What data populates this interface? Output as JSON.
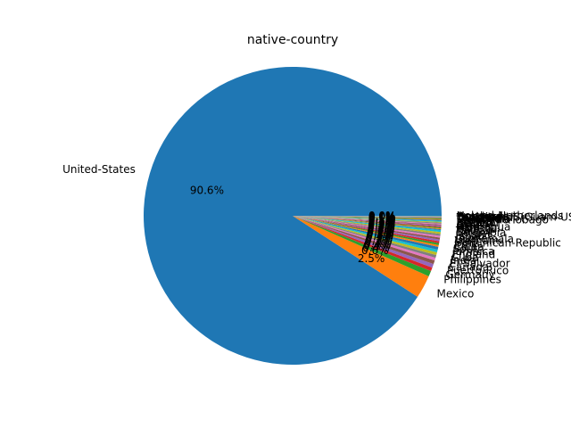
{
  "chart_data": {
    "type": "pie",
    "title": "native-country",
    "start_angle_deg": 0,
    "direction": "counterclockwise",
    "label_format": "percent-1-decimal",
    "palette": [
      "#1f77b4",
      "#ff7f0e",
      "#2ca02c",
      "#d62728",
      "#9467bd",
      "#8c564b",
      "#e377c2",
      "#7f7f7f",
      "#bcbd22",
      "#17becf"
    ],
    "slices": [
      {
        "label": "United-States",
        "value": 90.6
      },
      {
        "label": "Mexico",
        "value": 2.5
      },
      {
        "label": "Philippines",
        "value": 0.6
      },
      {
        "label": "Germany",
        "value": 0.4
      },
      {
        "label": "Puerto-Rico",
        "value": 0.4
      },
      {
        "label": "Canada",
        "value": 0.4
      },
      {
        "label": "El-Salvador",
        "value": 0.3
      },
      {
        "label": "India",
        "value": 0.3
      },
      {
        "label": "Cuba",
        "value": 0.3
      },
      {
        "label": "England",
        "value": 0.3
      },
      {
        "label": "Jamaica",
        "value": 0.3
      },
      {
        "label": "South",
        "value": 0.2
      },
      {
        "label": "China",
        "value": 0.2
      },
      {
        "label": "Italy",
        "value": 0.2
      },
      {
        "label": "Dominican-Republic",
        "value": 0.2
      },
      {
        "label": "Vietnam",
        "value": 0.2
      },
      {
        "label": "Guatemala",
        "value": 0.2
      },
      {
        "label": "Japan",
        "value": 0.2
      },
      {
        "label": "Poland",
        "value": 0.2
      },
      {
        "label": "Columbia",
        "value": 0.2
      },
      {
        "label": "Taiwan",
        "value": 0.1
      },
      {
        "label": "Haiti",
        "value": 0.1
      },
      {
        "label": "Iran",
        "value": 0.1
      },
      {
        "label": "Portugal",
        "value": 0.1
      },
      {
        "label": "Nicaragua",
        "value": 0.1
      },
      {
        "label": "Peru",
        "value": 0.1
      },
      {
        "label": "Greece",
        "value": 0.1
      },
      {
        "label": "France",
        "value": 0.1
      },
      {
        "label": "Ecuador",
        "value": 0.1
      },
      {
        "label": "Ireland",
        "value": 0.1
      },
      {
        "label": "Hong",
        "value": 0.1
      },
      {
        "label": "Trinadad&Tobago",
        "value": 0.1
      },
      {
        "label": "Cambodia",
        "value": 0.1
      },
      {
        "label": "Laos",
        "value": 0.0
      },
      {
        "label": "Thailand",
        "value": 0.0
      },
      {
        "label": "Yugoslavia",
        "value": 0.0
      },
      {
        "label": "Outlying-US(Guam-USVI-etc)",
        "value": 0.0
      },
      {
        "label": "Hungary",
        "value": 0.0
      },
      {
        "label": "Honduras",
        "value": 0.0
      },
      {
        "label": "Scotland",
        "value": 0.0
      },
      {
        "label": "Holand-Netherlands",
        "value": 0.0
      }
    ]
  }
}
